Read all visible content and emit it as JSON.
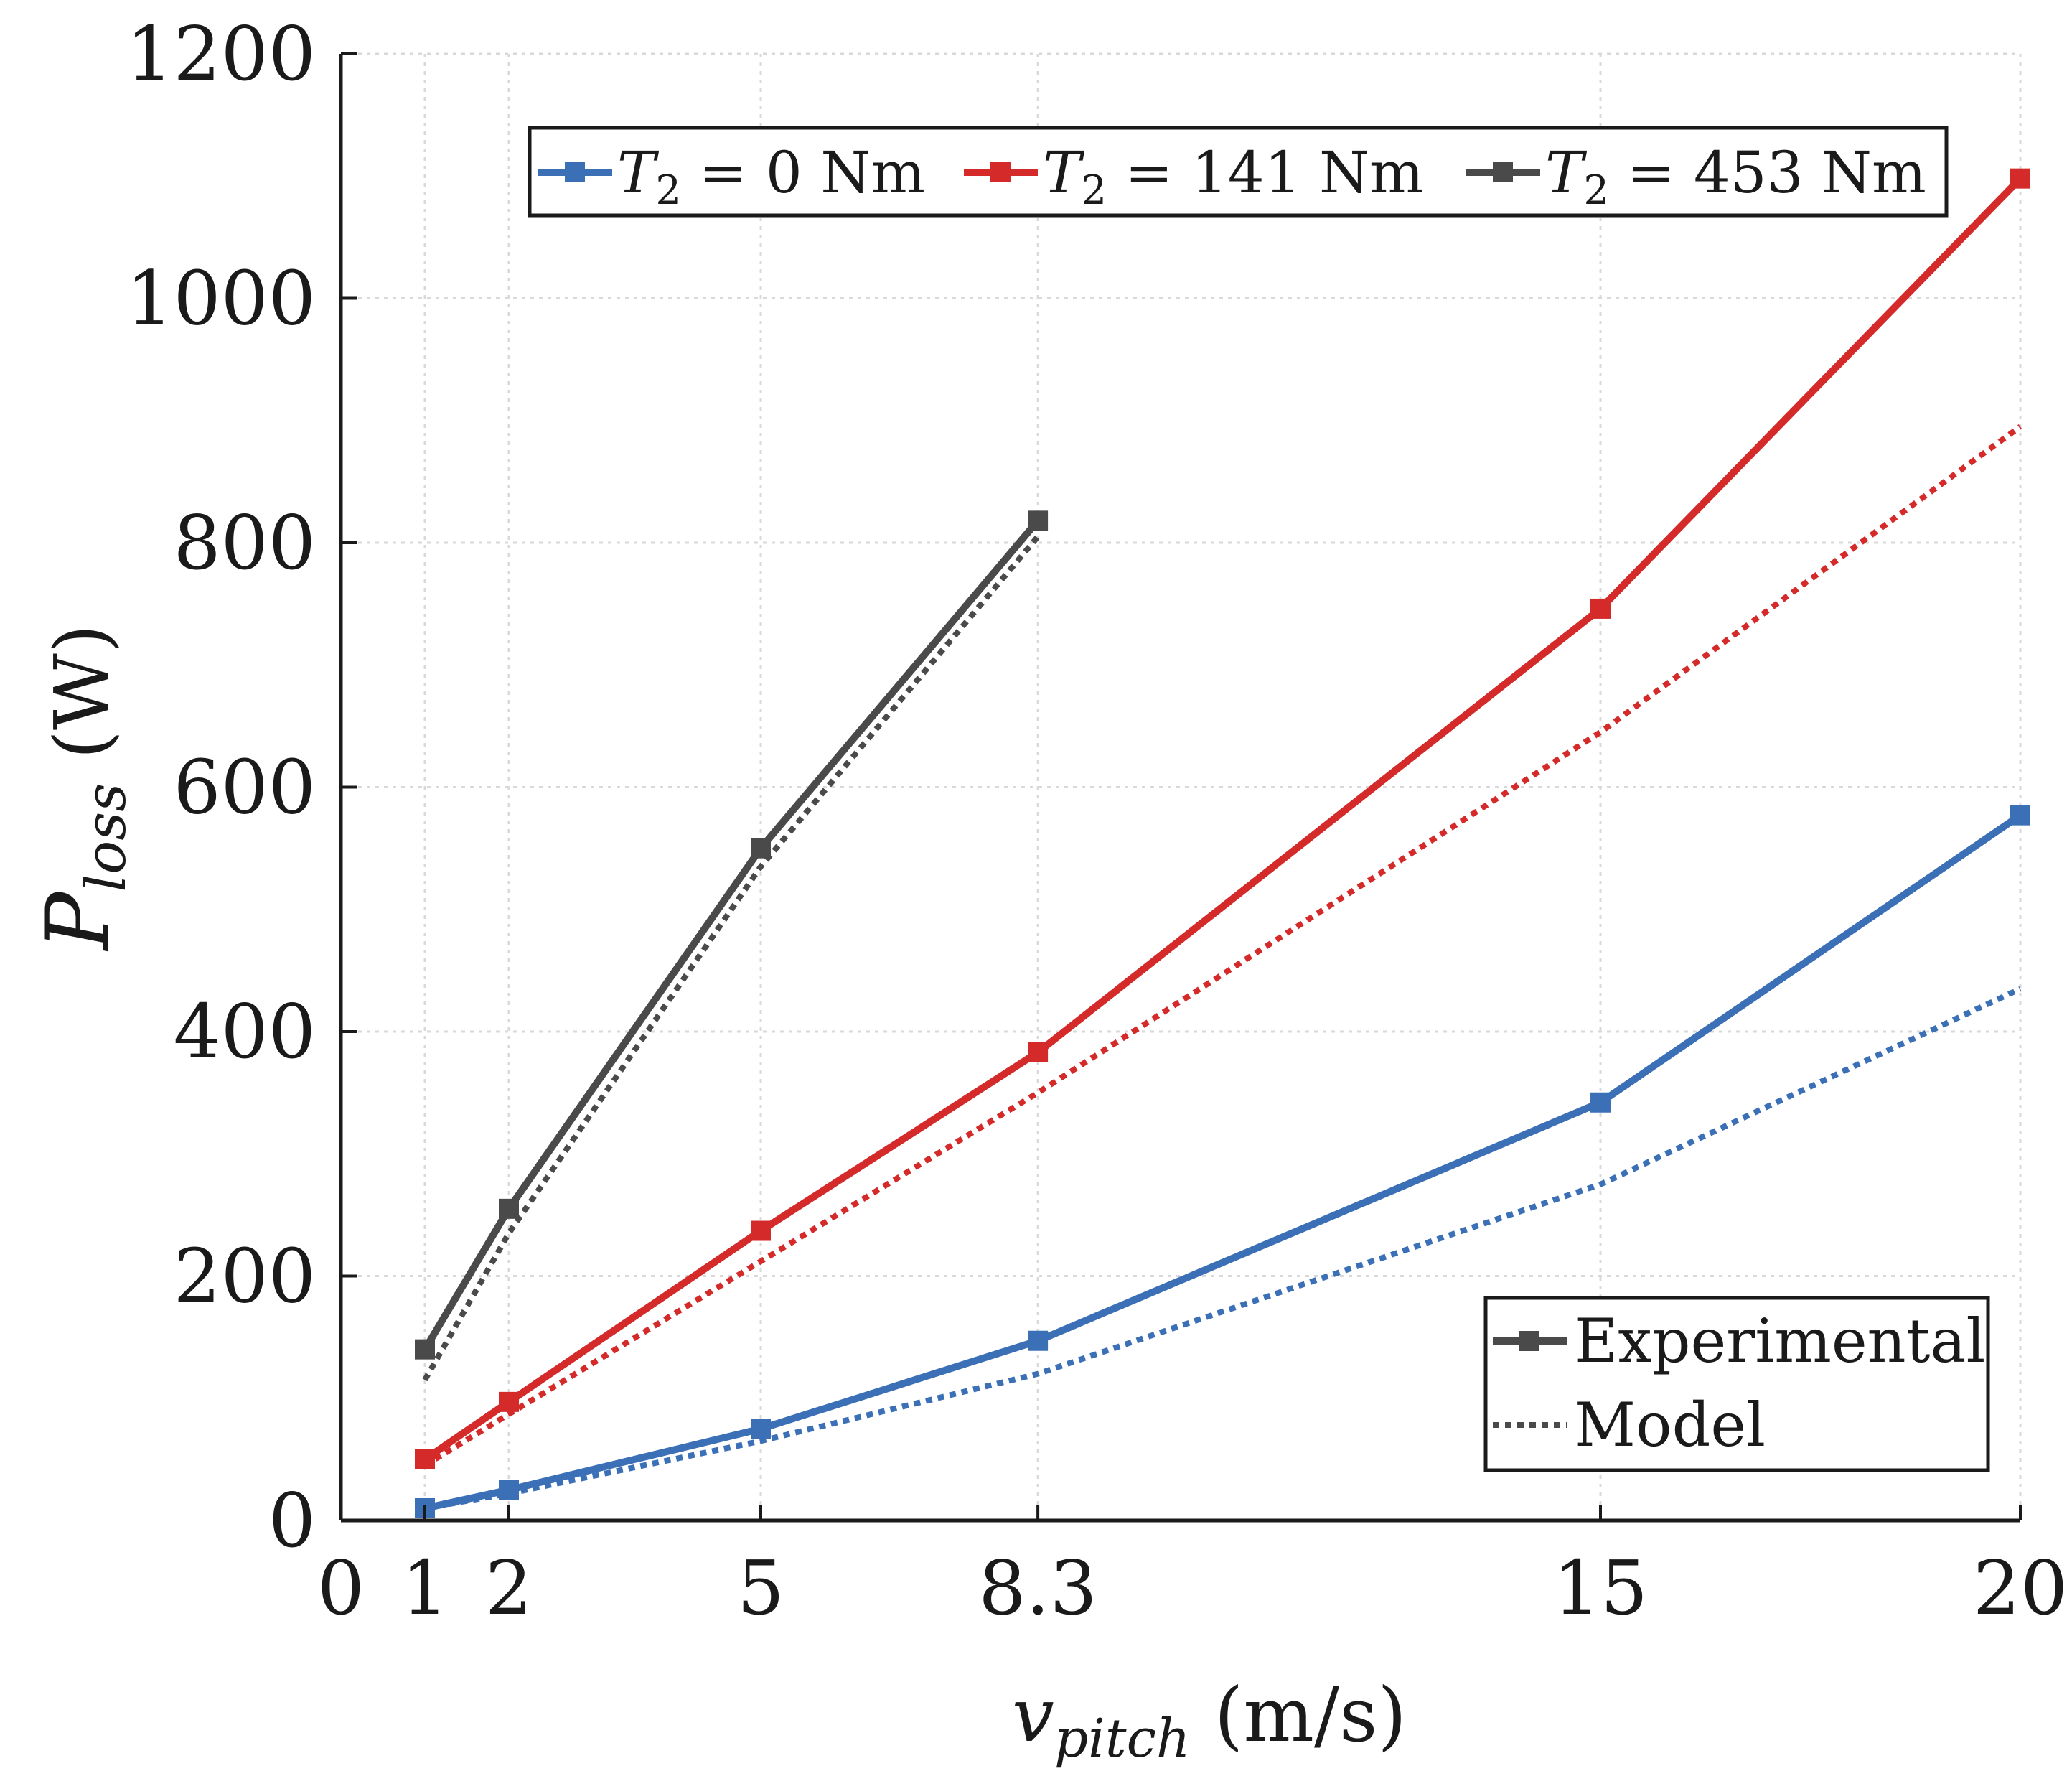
{
  "chart_data": {
    "type": "line",
    "title": "",
    "xlabel": {
      "symbol": "v",
      "subscript": "pitch",
      "unit": "(m/s)"
    },
    "ylabel": {
      "symbol": "P",
      "subscript": "loss",
      "unit": "(W)"
    },
    "xlim": [
      0,
      20
    ],
    "ylim": [
      0,
      1200
    ],
    "xticks": [
      0,
      1,
      2,
      5,
      8.3,
      15,
      20
    ],
    "xtick_labels": [
      "0",
      "1",
      "2",
      "5",
      "8.3",
      "15",
      "20"
    ],
    "yticks": [
      0,
      200,
      400,
      600,
      800,
      1000,
      1200
    ],
    "ytick_labels": [
      "0",
      "200",
      "400",
      "600",
      "800",
      "1000",
      "1200"
    ],
    "grid": true,
    "series": [
      {
        "name": "T2 = 0 Nm",
        "legend": {
          "symbol": "T",
          "subscript": "2",
          "rest": " = 0 Nm"
        },
        "color": "#3b6fb6",
        "experimental": {
          "x": [
            1,
            2,
            5,
            8.3,
            15,
            20
          ],
          "y": [
            10,
            25,
            75,
            147,
            342,
            577
          ]
        },
        "model": {
          "x": [
            1,
            2,
            5,
            8.3,
            15,
            20
          ],
          "y": [
            10,
            22,
            65,
            120,
            275,
            435
          ]
        }
      },
      {
        "name": "T2 = 141 Nm",
        "legend": {
          "symbol": "T",
          "subscript": "2",
          "rest": " = 141 Nm"
        },
        "color": "#d42a2a",
        "experimental": {
          "x": [
            1,
            2,
            5,
            8.3,
            15,
            20
          ],
          "y": [
            50,
            97,
            237,
            383,
            746,
            1098
          ]
        },
        "model": {
          "x": [
            1,
            2,
            5,
            8.3,
            15,
            20
          ],
          "y": [
            45,
            87,
            212,
            350,
            645,
            895
          ]
        }
      },
      {
        "name": "T2 = 453 Nm",
        "legend": {
          "symbol": "T",
          "subscript": "2",
          "rest": " = 453 Nm"
        },
        "color": "#4a4a4a",
        "experimental": {
          "x": [
            1,
            2,
            5,
            8.3
          ],
          "y": [
            140,
            255,
            550,
            818
          ]
        },
        "model": {
          "x": [
            1,
            2,
            5,
            8.3
          ],
          "y": [
            115,
            235,
            535,
            805
          ]
        }
      }
    ],
    "series_legend_placement": "top",
    "style_legend": {
      "placement": "bottom-right",
      "experimental_label": "Experimental",
      "model_label": "Model",
      "color": "#4a4a4a"
    }
  }
}
